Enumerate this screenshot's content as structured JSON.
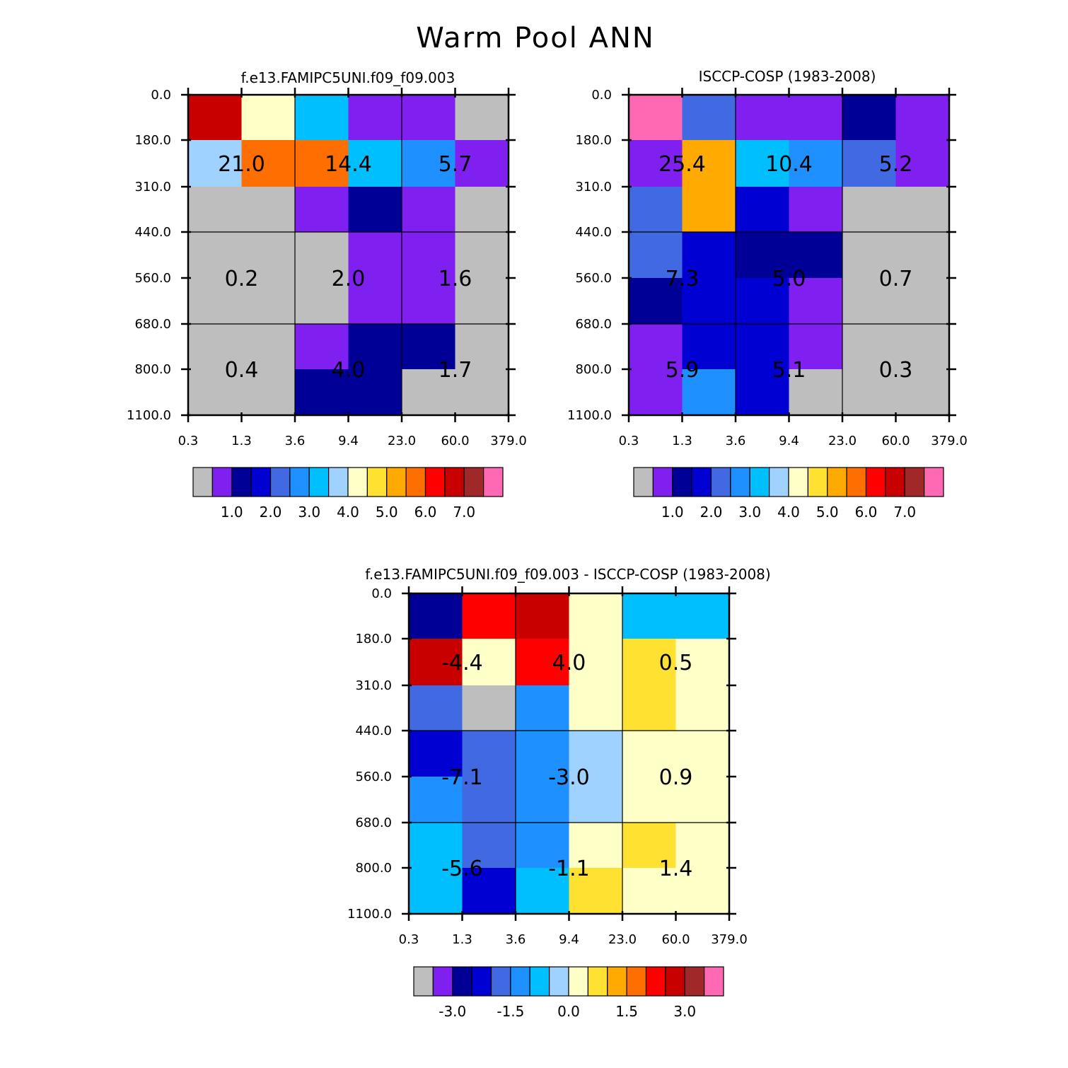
{
  "page": {
    "title": "Warm Pool ANN"
  },
  "palette": {
    "missing": "#bebebe",
    "levels": [
      "#8020f0",
      "#000096",
      "#0000d2",
      "#4169e1",
      "#1e90ff",
      "#00bfff",
      "#a0d2ff",
      "#ffffc8",
      "#ffe132",
      "#ffaa00",
      "#ff6e00",
      "#ff0000",
      "#c80000",
      "#a02828",
      "#ff69b4"
    ]
  },
  "chart_data": [
    {
      "type": "heatmap",
      "name": "model",
      "title": "f.e13.FAMIPC5UNI.f09_f09.003",
      "x_tick_labels": [
        "0.3",
        "1.3",
        "3.6",
        "9.4",
        "23.0",
        "60.0",
        "379.0"
      ],
      "y_tick_labels": [
        "0.0",
        "180.0",
        "310.0",
        "440.0",
        "560.0",
        "680.0",
        "800.0",
        "1100.0"
      ],
      "grid_on": true,
      "cell_color_index": [
        [
          12,
          7,
          5,
          0,
          0,
          -1
        ],
        [
          6,
          10,
          10,
          5,
          4,
          0
        ],
        [
          -1,
          -1,
          0,
          1,
          0,
          -1
        ],
        [
          -1,
          -1,
          -1,
          0,
          0,
          -1
        ],
        [
          -1,
          -1,
          -1,
          0,
          0,
          -1
        ],
        [
          -1,
          -1,
          0,
          1,
          1,
          -1
        ],
        [
          -1,
          -1,
          1,
          1,
          -1,
          -1
        ]
      ],
      "annotations": [
        [
          "21.0",
          "14.4",
          "5.7"
        ],
        [
          "0.2",
          "2.0",
          "1.6"
        ],
        [
          "0.4",
          "4.0",
          "1.7"
        ]
      ],
      "colorbar": {
        "tick_labels": [
          "1.0",
          "2.0",
          "3.0",
          "4.0",
          "5.0",
          "6.0",
          "7.0"
        ]
      }
    },
    {
      "type": "heatmap",
      "name": "observations",
      "title": "ISCCP-COSP (1983-2008)",
      "x_tick_labels": [
        "0.3",
        "1.3",
        "3.6",
        "9.4",
        "23.0",
        "60.0",
        "379.0"
      ],
      "y_tick_labels": [
        "0.0",
        "180.0",
        "310.0",
        "440.0",
        "560.0",
        "680.0",
        "800.0",
        "1100.0"
      ],
      "grid_on": true,
      "cell_color_index": [
        [
          14,
          3,
          0,
          0,
          1,
          0
        ],
        [
          0,
          9,
          5,
          4,
          3,
          0
        ],
        [
          3,
          9,
          2,
          0,
          -1,
          -1
        ],
        [
          3,
          2,
          1,
          1,
          -1,
          -1
        ],
        [
          1,
          2,
          2,
          0,
          -1,
          -1
        ],
        [
          0,
          2,
          2,
          0,
          -1,
          -1
        ],
        [
          0,
          4,
          2,
          -1,
          -1,
          -1
        ]
      ],
      "annotations": [
        [
          "25.4",
          "10.4",
          "5.2"
        ],
        [
          "7.3",
          "5.0",
          "0.7"
        ],
        [
          "5.9",
          "5.1",
          "0.3"
        ]
      ],
      "colorbar": {
        "tick_labels": [
          "1.0",
          "2.0",
          "3.0",
          "4.0",
          "5.0",
          "6.0",
          "7.0"
        ]
      }
    },
    {
      "type": "heatmap",
      "name": "difference",
      "title": "f.e13.FAMIPC5UNI.f09_f09.003 - ISCCP-COSP (1983-2008)",
      "x_tick_labels": [
        "0.3",
        "1.3",
        "3.6",
        "9.4",
        "23.0",
        "60.0",
        "379.0"
      ],
      "y_tick_labels": [
        "0.0",
        "180.0",
        "310.0",
        "440.0",
        "560.0",
        "680.0",
        "800.0",
        "1100.0"
      ],
      "grid_on": true,
      "cell_color_index": [
        [
          1,
          11,
          12,
          7,
          5,
          5
        ],
        [
          12,
          7,
          11,
          7,
          8,
          7
        ],
        [
          3,
          -1,
          4,
          7,
          8,
          7
        ],
        [
          2,
          3,
          4,
          6,
          7,
          7
        ],
        [
          4,
          3,
          4,
          6,
          7,
          7
        ],
        [
          5,
          3,
          4,
          7,
          8,
          7
        ],
        [
          5,
          2,
          5,
          8,
          7,
          7
        ]
      ],
      "annotations": [
        [
          "-4.4",
          "4.0",
          "0.5"
        ],
        [
          "-7.1",
          "-3.0",
          "0.9"
        ],
        [
          "-5.6",
          "-1.1",
          "1.4"
        ]
      ],
      "colorbar": {
        "tick_labels": [
          "-3.0",
          "-1.5",
          "0.0",
          "1.5",
          "3.0"
        ]
      }
    }
  ]
}
